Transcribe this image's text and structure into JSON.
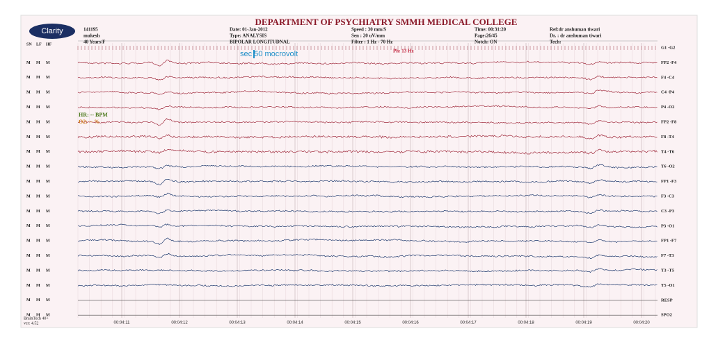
{
  "header": {
    "logo": "Clarity",
    "title": "DEPARTMENT OF PSYCHIATRY SMMH MEDICAL COLLEGE",
    "patient": [
      "141195",
      "mukesh",
      "40 Years/F"
    ],
    "col2": [
      "Date:   01-Jan-2012",
      "Type:   ANALYSIS",
      "BIPOLAR LONGITUDNAL"
    ],
    "col3": [
      "Speed :  30  mm/S",
      "Sen :    20  uV/mm",
      "Filter : 1 Hz - 70 Hz"
    ],
    "col4": [
      "Time: 00:31:20",
      "Page:26/45",
      "Notch: ON"
    ],
    "col5": [
      "Ref:dr anshuman tiwari",
      "Dr. : dr anshuman tiwari",
      "Tech:"
    ]
  },
  "flag_headers": [
    "SN",
    "LF",
    "HF"
  ],
  "channels": [
    {
      "label": "G1 -G2",
      "flags": [
        "",
        "",
        ""
      ]
    },
    {
      "label": "FP2 -F4",
      "flags": [
        "M",
        "M",
        "M"
      ]
    },
    {
      "label": "F4 -C4",
      "flags": [
        "M",
        "M",
        "M"
      ]
    },
    {
      "label": "C4 -P4",
      "flags": [
        "M",
        "M",
        "M"
      ]
    },
    {
      "label": "P4 -O2",
      "flags": [
        "M",
        "M",
        "M"
      ]
    },
    {
      "label": "FP2 -F8",
      "flags": [
        "M",
        "M",
        "M"
      ]
    },
    {
      "label": "F8 -T4",
      "flags": [
        "M",
        "M",
        "M"
      ]
    },
    {
      "label": "T4 -T6",
      "flags": [
        "M",
        "M",
        "M"
      ]
    },
    {
      "label": "T6 -O2",
      "flags": [
        "M",
        "M",
        "M"
      ]
    },
    {
      "label": "FP1 -F3",
      "flags": [
        "M",
        "M",
        "M"
      ]
    },
    {
      "label": "F3 -C3",
      "flags": [
        "M",
        "M",
        "M"
      ]
    },
    {
      "label": "C3 -P3",
      "flags": [
        "M",
        "M",
        "M"
      ]
    },
    {
      "label": "P3 -O1",
      "flags": [
        "M",
        "M",
        "M"
      ]
    },
    {
      "label": "FP1 -F7",
      "flags": [
        "M",
        "M",
        "M"
      ]
    },
    {
      "label": "F7 -T3",
      "flags": [
        "M",
        "M",
        "M"
      ]
    },
    {
      "label": "T3 -T5",
      "flags": [
        "M",
        "M",
        "M"
      ]
    },
    {
      "label": "T5 -O1",
      "flags": [
        "M",
        "M",
        "M"
      ]
    },
    {
      "label": "RESP",
      "flags": [
        "M",
        "M",
        "M"
      ]
    },
    {
      "label": "SPO2",
      "flags": [
        "M",
        "M",
        "M"
      ]
    }
  ],
  "times": [
    "00:04:11",
    "00:04:12",
    "00:04:13",
    "00:04:14",
    "00:04:15",
    "00:04:16",
    "00:04:17",
    "00:04:18",
    "00:04:19",
    "00:04:20"
  ],
  "annotations": {
    "scale": "sec 50 mocrovolt",
    "photic": "Ph: 13 Hz",
    "hr": "HR: -- BPM",
    "o2": "O2: -- %"
  },
  "footer": [
    "BrainTech 40+",
    "ver: 4.52"
  ]
}
